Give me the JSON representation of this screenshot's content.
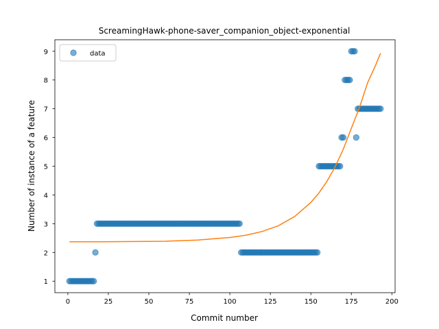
{
  "chart_data": {
    "type": "scatter",
    "title": "ScreamingHawk-phone-saver_companion_object-exponential",
    "xlabel": "Commit number",
    "ylabel": "Number of instance of a feature",
    "xlim": [
      -8,
      202
    ],
    "ylim": [
      0.6,
      9.4
    ],
    "x_ticks": [
      0,
      25,
      50,
      75,
      100,
      125,
      150,
      175,
      200
    ],
    "y_ticks": [
      1,
      2,
      3,
      4,
      5,
      6,
      7,
      8,
      9
    ],
    "legend": {
      "placement": "top-left",
      "entries": [
        "data"
      ]
    },
    "grid": false,
    "colors": {
      "data": "#1f77b4",
      "fit": "#ff7f0e"
    },
    "series": [
      {
        "name": "data",
        "kind": "scatter",
        "segments": [
          {
            "x_start": 1,
            "x_end": 16,
            "y": 1
          },
          {
            "x_start": 17,
            "x_end": 17,
            "y": 2
          },
          {
            "x_start": 18,
            "x_end": 106,
            "y": 3
          },
          {
            "x_start": 107,
            "x_end": 154,
            "y": 2
          },
          {
            "x_start": 155,
            "x_end": 168,
            "y": 5
          },
          {
            "x_start": 169,
            "x_end": 170,
            "y": 6
          },
          {
            "x_start": 171,
            "x_end": 174,
            "y": 8
          },
          {
            "x_start": 175,
            "x_end": 177,
            "y": 9
          },
          {
            "x_start": 178,
            "x_end": 178,
            "y": 6
          },
          {
            "x_start": 179,
            "x_end": 193,
            "y": 7
          }
        ]
      },
      {
        "kind": "line",
        "x": [
          1,
          20,
          40,
          60,
          80,
          100,
          110,
          120,
          130,
          140,
          150,
          155,
          160,
          165,
          170,
          175,
          180,
          185,
          190,
          193
        ],
        "y": [
          2.37,
          2.37,
          2.38,
          2.39,
          2.43,
          2.52,
          2.6,
          2.73,
          2.93,
          3.25,
          3.74,
          4.07,
          4.48,
          4.98,
          5.59,
          6.32,
          7.04,
          7.9,
          8.52,
          8.93
        ]
      }
    ]
  }
}
